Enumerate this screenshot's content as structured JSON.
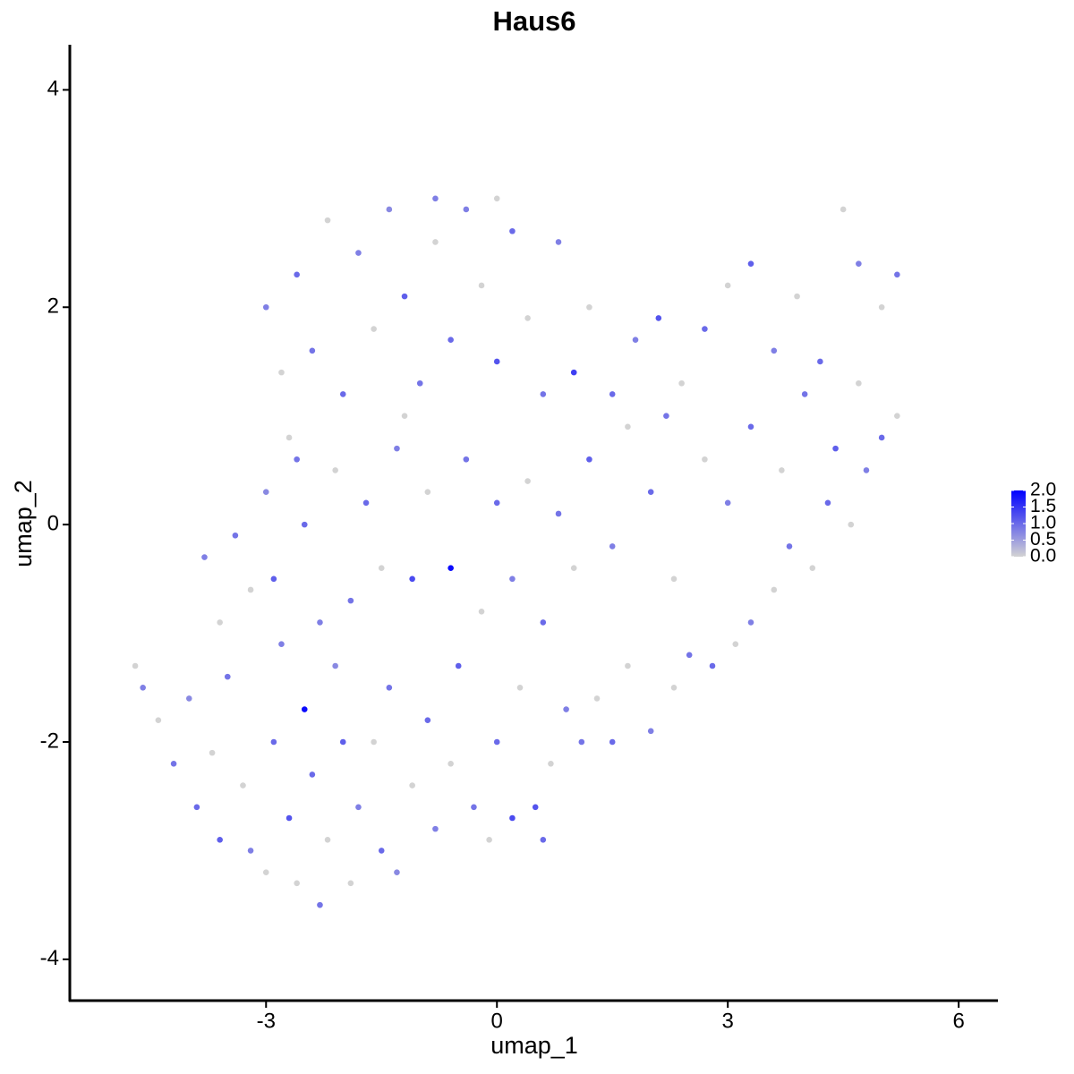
{
  "chart_data": {
    "type": "scatter",
    "title": "Haus6",
    "x_label": "umap_1",
    "y_label": "umap_2",
    "xlim": [
      -5.55,
      6.51
    ],
    "ylim": [
      -4.38,
      4.415
    ],
    "xticks": [
      -3,
      0,
      3,
      6
    ],
    "yticks": [
      -4,
      -2,
      0,
      2,
      4
    ],
    "color_low": "#d3d3d3",
    "color_high": "#0000ff",
    "color_lim": [
      0,
      2
    ],
    "color_ticks": [
      {
        "value": 0,
        "label": "0.0"
      },
      0.5,
      {
        "value": 1,
        "label": "1.0"
      },
      1.5,
      {
        "value": 2,
        "label": "2.0"
      }
    ],
    "x": [
      -4.7,
      -4.6,
      -4.4,
      -4.2,
      -4.0,
      -3.9,
      -3.7,
      -3.6,
      -3.5,
      -3.3,
      -3.2,
      -3.0,
      -2.9,
      -2.8,
      -2.7,
      -2.6,
      -2.5,
      -2.4,
      -2.3,
      -2.2,
      -2.1,
      -2.0,
      -1.9,
      -1.8,
      -1.6,
      -1.5,
      -1.4,
      -1.3,
      -1.1,
      -0.9,
      -0.8,
      -0.6,
      -0.5,
      -0.3,
      -0.1,
      0.0,
      0.2,
      0.3,
      0.5,
      0.6,
      0.7,
      0.9,
      1.1,
      1.3,
      1.5,
      1.7,
      2.0,
      2.3,
      2.5,
      2.8,
      3.1,
      3.3,
      3.6,
      3.8,
      4.1,
      4.3,
      4.6,
      4.8,
      5.0,
      5.2,
      -3.8,
      -3.6,
      -3.4,
      -3.2,
      -3.0,
      -2.9,
      -2.7,
      -2.5,
      -2.3,
      -2.1,
      -1.9,
      -1.7,
      -1.5,
      -1.3,
      -1.1,
      -0.9,
      -0.6,
      -0.4,
      -0.2,
      0.0,
      0.2,
      0.4,
      0.6,
      0.8,
      1.0,
      1.2,
      1.5,
      1.7,
      2.0,
      2.3,
      2.2,
      2.7,
      3.0,
      3.3,
      3.7,
      4.0,
      4.4,
      4.7,
      -3.0,
      -2.8,
      -2.6,
      -2.4,
      -2.2,
      -2.0,
      -1.8,
      -1.6,
      -1.4,
      -1.2,
      -1.0,
      -0.8,
      -0.6,
      -0.4,
      -0.2,
      0.0,
      0.2,
      0.4,
      0.6,
      0.8,
      1.0,
      1.2,
      1.5,
      1.8,
      2.1,
      2.4,
      2.7,
      3.0,
      3.3,
      3.6,
      3.9,
      4.2,
      4.5,
      4.7,
      5.0,
      5.2,
      0.0,
      -0.8,
      -1.2,
      -2.6
    ],
    "y": [
      -1.3,
      -1.5,
      -1.8,
      -2.2,
      -1.6,
      -2.6,
      -2.1,
      -2.9,
      -1.4,
      -2.4,
      -3.0,
      -3.2,
      -2.0,
      -1.1,
      -2.7,
      -3.3,
      -1.7,
      -2.3,
      -3.5,
      -2.9,
      -1.3,
      -2.0,
      -3.3,
      -2.6,
      -2.0,
      -3.0,
      -1.5,
      -3.2,
      -2.4,
      -1.8,
      -2.8,
      -2.2,
      -1.3,
      -2.6,
      -2.9,
      -2.0,
      -2.7,
      -1.5,
      -2.6,
      -2.9,
      -2.2,
      -1.7,
      -2.0,
      -1.6,
      -2.0,
      -1.3,
      -1.9,
      -1.5,
      -1.2,
      -1.3,
      -1.1,
      -0.9,
      -0.6,
      -0.2,
      -0.4,
      0.2,
      0.0,
      0.5,
      0.8,
      1.0,
      -0.3,
      -0.9,
      -0.1,
      -0.6,
      0.3,
      -0.5,
      0.8,
      0.0,
      -0.9,
      0.5,
      -0.7,
      0.2,
      -0.4,
      0.7,
      -0.5,
      0.3,
      -0.4,
      0.6,
      -0.8,
      0.2,
      -0.5,
      0.4,
      -0.9,
      0.1,
      -0.4,
      0.6,
      -0.2,
      0.9,
      0.3,
      -0.5,
      1.0,
      0.6,
      0.2,
      0.9,
      0.5,
      1.2,
      0.7,
      1.3,
      2.0,
      1.4,
      2.3,
      1.6,
      2.8,
      1.2,
      2.5,
      1.8,
      2.9,
      2.1,
      1.3,
      2.6,
      1.7,
      2.9,
      2.2,
      1.5,
      2.7,
      1.9,
      1.2,
      2.6,
      1.4,
      2.0,
      1.2,
      1.7,
      1.9,
      1.3,
      1.8,
      2.2,
      2.4,
      1.6,
      2.1,
      1.5,
      2.9,
      2.4,
      2.0,
      2.3,
      3.0,
      3.0,
      1.0,
      0.6
    ],
    "expression": [
      0,
      0.8,
      0,
      0.9,
      0.7,
      1.0,
      0,
      1.1,
      0.9,
      0,
      0.8,
      0,
      1.0,
      0.8,
      1.2,
      0,
      1.9,
      1.0,
      0.9,
      0,
      0.7,
      1.1,
      0,
      0.8,
      0,
      1.0,
      0.9,
      0.7,
      0,
      1.0,
      0.8,
      0,
      1.1,
      0.9,
      0,
      1.0,
      1.3,
      0,
      1.2,
      1.0,
      0,
      0.8,
      0.9,
      0,
      1.0,
      0,
      0.8,
      0,
      0.9,
      1.0,
      0,
      0.8,
      0,
      0.9,
      0,
      1.0,
      0,
      0.8,
      1.0,
      0,
      0.8,
      0,
      0.9,
      0,
      0.7,
      1.1,
      0,
      1.0,
      0.8,
      0,
      0.9,
      1.0,
      0,
      0.8,
      1.3,
      0,
      1.9,
      0.9,
      0,
      1.0,
      0.8,
      0,
      1.0,
      0.9,
      0,
      1.1,
      0.8,
      0,
      1.0,
      0,
      0.9,
      0,
      0.8,
      1.0,
      0,
      0.9,
      1.1,
      0,
      0.8,
      0,
      1.0,
      0.9,
      0,
      1.0,
      0.8,
      0,
      0.7,
      1.1,
      0.9,
      0,
      1.0,
      0.8,
      0,
      1.2,
      1.0,
      0,
      0.9,
      0.8,
      1.4,
      0,
      1.0,
      0.8,
      1.2,
      0,
      1.0,
      0,
      1.1,
      0.8,
      0,
      1.0,
      0,
      0.8,
      0,
      0.9,
      0,
      0.8,
      0,
      0.9
    ]
  }
}
